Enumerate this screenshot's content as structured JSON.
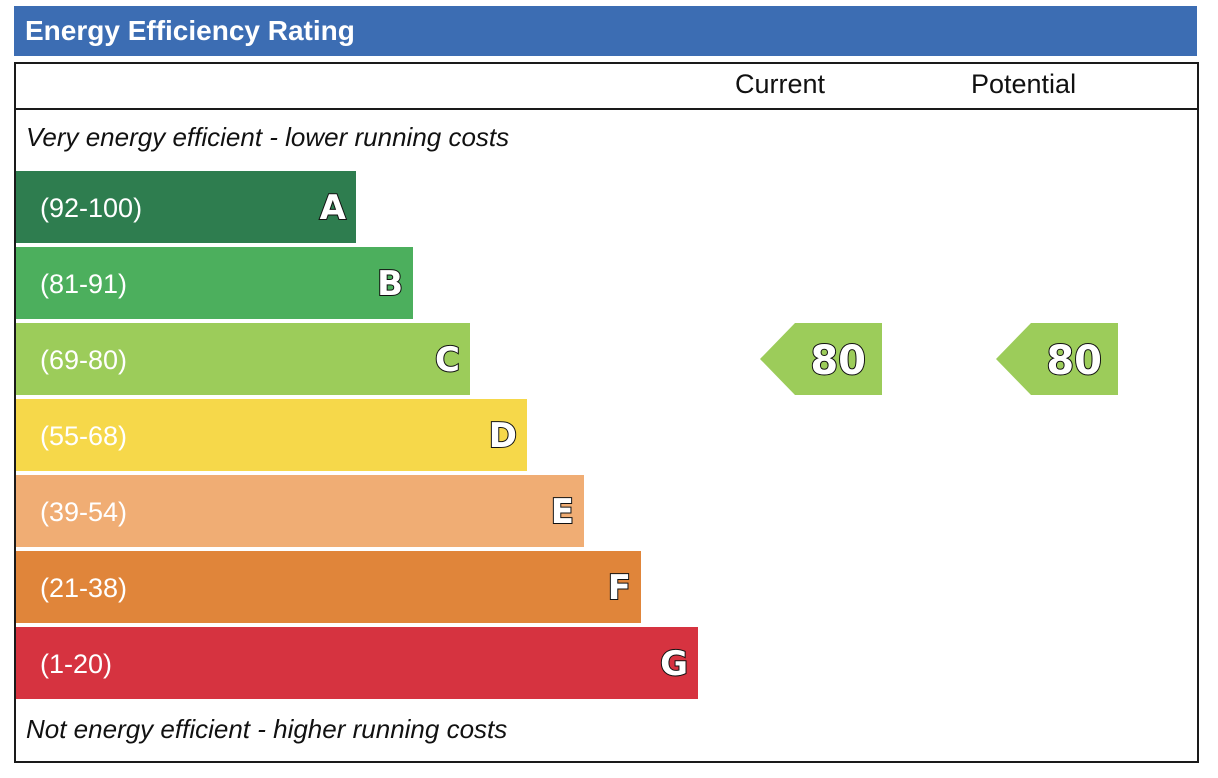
{
  "title": "Energy Efficiency Rating",
  "columns": {
    "current": "Current",
    "potential": "Potential"
  },
  "top_note": "Very energy efficient - lower running costs",
  "bottom_note": "Not energy efficient - higher running costs",
  "chart_data": {
    "type": "bar",
    "title": "Energy Efficiency Rating",
    "categories": [
      "A",
      "B",
      "C",
      "D",
      "E",
      "F",
      "G"
    ],
    "ranges": [
      "(92-100)",
      "(81-91)",
      "(69-80)",
      "(55-68)",
      "(39-54)",
      "(21-38)",
      "(1-20)"
    ],
    "colors": [
      "#2e7d4f",
      "#4caf5d",
      "#9ccc5a",
      "#f6d84a",
      "#f0ad74",
      "#e0853a",
      "#d63340"
    ],
    "current": {
      "label": "Current",
      "value": 80,
      "band": "C",
      "color": "#9ccc5a"
    },
    "potential": {
      "label": "Potential",
      "value": 80,
      "band": "C",
      "color": "#9ccc5a"
    }
  }
}
